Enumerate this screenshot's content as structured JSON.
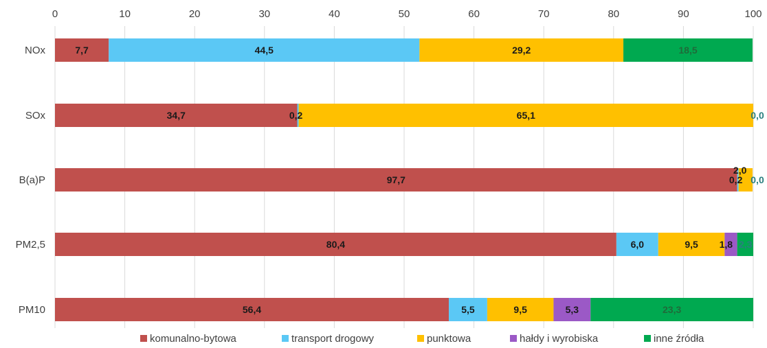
{
  "chart_data": {
    "type": "bar",
    "orientation": "horizontal",
    "stacked": true,
    "xlim": [
      0,
      100
    ],
    "x_ticks": [
      "0",
      "10",
      "20",
      "30",
      "40",
      "50",
      "60",
      "70",
      "80",
      "90",
      "100"
    ],
    "grid": "vertical",
    "legend_position": "bottom",
    "categories": [
      "NOx",
      "SOx",
      "B(a)P",
      "PM2,5",
      "PM10"
    ],
    "series": [
      {
        "name": "komunalno-bytowa",
        "color": "#c0504d",
        "values": [
          7.7,
          34.7,
          97.7,
          80.4,
          56.4
        ],
        "labels": [
          "7,7",
          "34,7",
          "97,7",
          "80,4",
          "56,4"
        ]
      },
      {
        "name": "transport drogowy",
        "color": "#5bc8f5",
        "values": [
          44.5,
          0.2,
          0.2,
          6.0,
          5.5
        ],
        "labels": [
          "44,5",
          "0,2",
          "0,2",
          "6,0",
          "5,5"
        ]
      },
      {
        "name": "punktowa",
        "color": "#ffc000",
        "values": [
          29.2,
          65.1,
          2.0,
          9.5,
          9.5
        ],
        "labels": [
          "29,2",
          "65,1",
          "2,0",
          "9,5",
          "9,5"
        ]
      },
      {
        "name": "hałdy i wyrobiska",
        "color": "#9b59c6",
        "values": [
          0,
          0,
          0,
          1.8,
          5.3
        ],
        "labels": [
          "",
          "",
          "",
          "1,8",
          "5,3"
        ]
      },
      {
        "name": "inne źródła",
        "color": "#00a950",
        "values": [
          18.5,
          0.0,
          0.0,
          2.3,
          23.3
        ],
        "labels": [
          "18,5",
          "0,0",
          "0,0",
          "2,3",
          "23,3"
        ]
      }
    ]
  }
}
